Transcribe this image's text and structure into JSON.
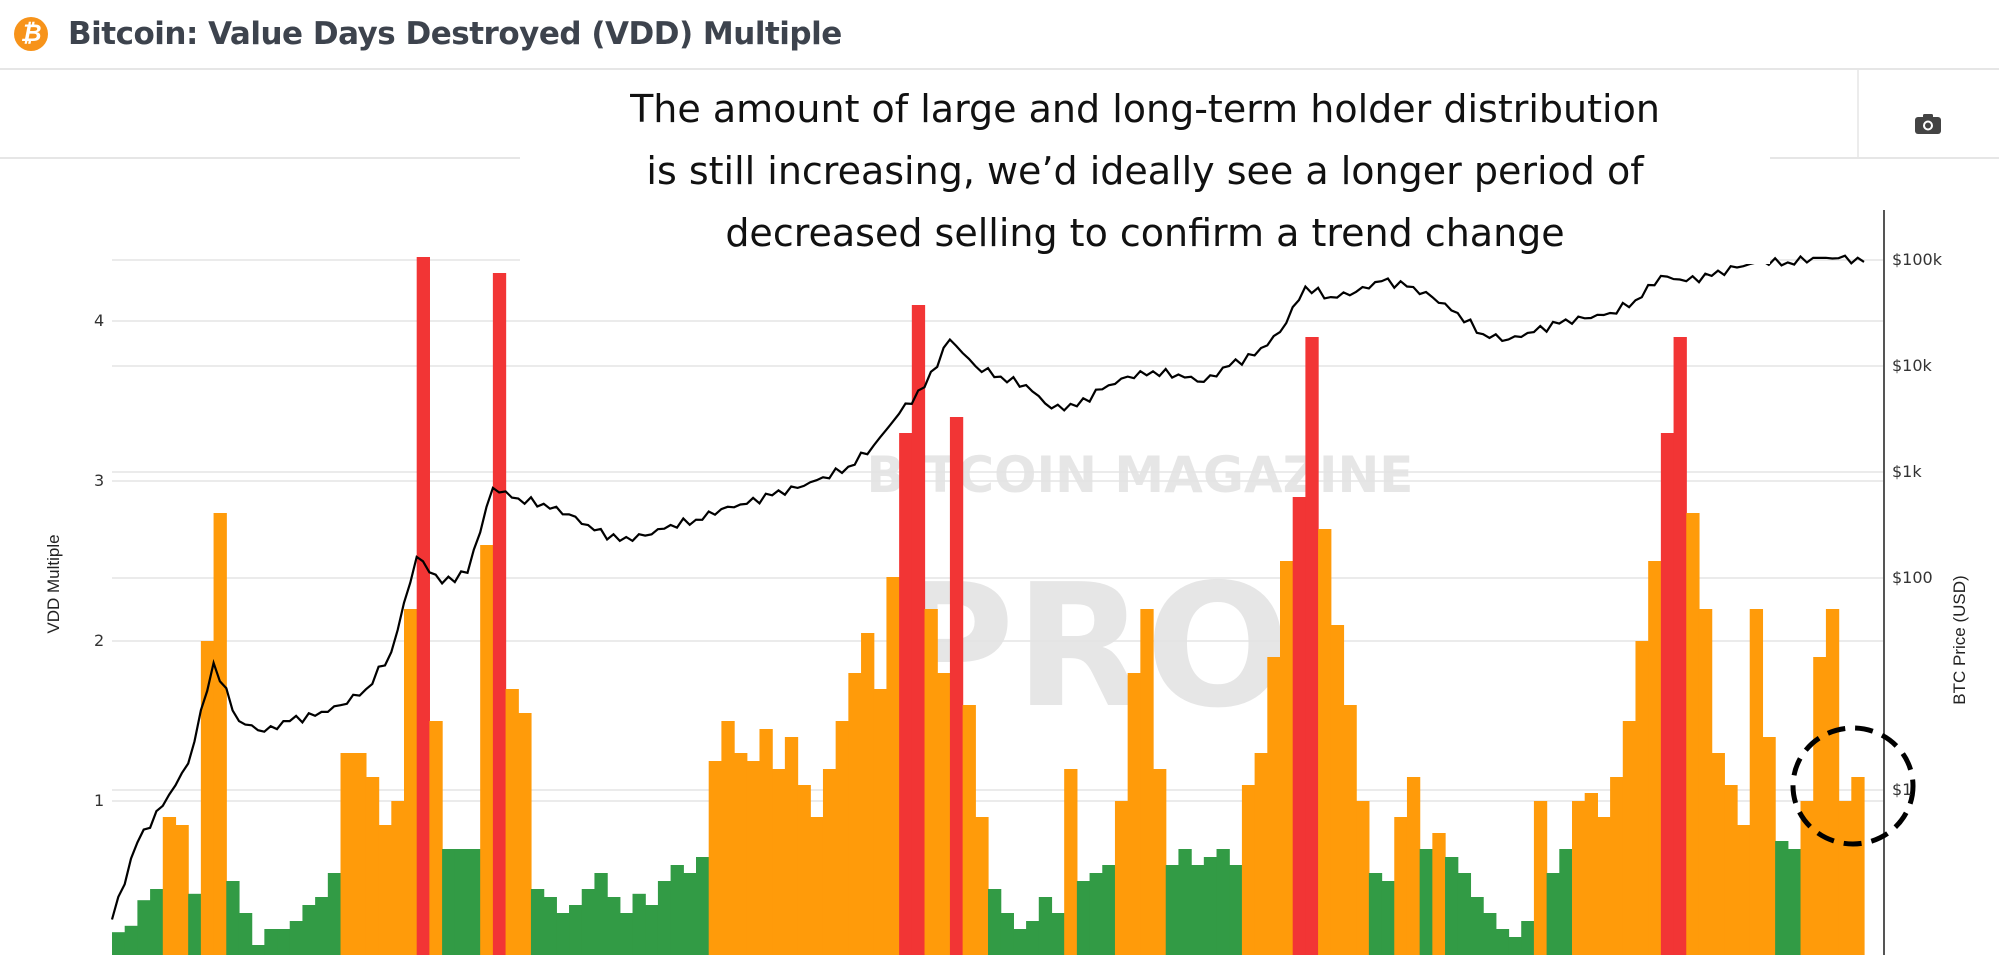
{
  "header": {
    "title": "Bitcoin: Value Days Destroyed (VDD) Multiple",
    "icon": "bitcoin-logo-icon",
    "camera_icon": "camera-icon"
  },
  "annotation": {
    "lines": [
      "The amount of large and long-term holder distribution",
      "is still increasing, we’d ideally see a longer period of",
      "decreased selling to confirm a trend change"
    ]
  },
  "watermark": {
    "line1": "BITCOIN MAGAZINE",
    "line2": "PRO"
  },
  "chart_data": {
    "type": "bar+line",
    "ylabel": "VDD Multiple",
    "y2label": "BTC Price (USD)",
    "ylim": [
      0,
      4.5
    ],
    "yticks": [
      {
        "v": 1,
        "label": "1"
      },
      {
        "v": 2,
        "label": "2"
      },
      {
        "v": 3,
        "label": "3"
      },
      {
        "v": 4,
        "label": "4"
      }
    ],
    "y2scale": "log",
    "y2lim": [
      0.025,
      250000
    ],
    "y2ticks": [
      {
        "v": 1,
        "label": "$1"
      },
      {
        "v": 100,
        "label": "$100"
      },
      {
        "v": 1000,
        "label": "$1k"
      },
      {
        "v": 10000,
        "label": "$10k"
      },
      {
        "v": 100000,
        "label": "$100k"
      }
    ],
    "grid": true,
    "colors": {
      "low": "#329b45",
      "mid": "#ff9b0a",
      "high": "#f23535",
      "price": "#000000"
    },
    "color_thresholds": {
      "mid": 0.78,
      "high": 2.9
    },
    "vdd_multiple": [
      0.18,
      0.22,
      0.38,
      0.45,
      0.9,
      0.85,
      0.42,
      2.0,
      2.8,
      0.5,
      0.3,
      0.1,
      0.2,
      0.2,
      0.25,
      0.35,
      0.4,
      0.55,
      1.3,
      1.3,
      1.15,
      0.85,
      1.0,
      2.2,
      4.4,
      1.5,
      0.7,
      0.7,
      0.7,
      2.6,
      4.3,
      1.7,
      1.55,
      0.45,
      0.4,
      0.3,
      0.35,
      0.45,
      0.55,
      0.4,
      0.3,
      0.42,
      0.35,
      0.5,
      0.6,
      0.55,
      0.65,
      1.25,
      1.5,
      1.3,
      1.25,
      1.45,
      1.2,
      1.4,
      1.1,
      0.9,
      1.2,
      1.5,
      1.8,
      2.05,
      1.7,
      2.4,
      3.3,
      4.1,
      2.2,
      1.8,
      3.4,
      1.6,
      0.9,
      0.45,
      0.3,
      0.2,
      0.25,
      0.4,
      0.3,
      1.2,
      0.5,
      0.55,
      0.6,
      1.0,
      1.8,
      2.2,
      1.2,
      0.6,
      0.7,
      0.6,
      0.65,
      0.7,
      0.6,
      1.1,
      1.3,
      1.9,
      2.5,
      2.9,
      3.9,
      2.7,
      2.1,
      1.6,
      1.0,
      0.55,
      0.5,
      0.9,
      1.15,
      0.7,
      0.8,
      0.65,
      0.55,
      0.4,
      0.3,
      0.2,
      0.15,
      0.25,
      1.0,
      0.55,
      0.7,
      1.0,
      1.05,
      0.9,
      1.15,
      1.5,
      2.0,
      2.5,
      3.3,
      3.9,
      2.8,
      2.2,
      1.3,
      1.1,
      0.85,
      2.2,
      1.4,
      0.75,
      0.7,
      1.0,
      1.9,
      2.2,
      1.0,
      1.15
    ],
    "btc_price": [
      0.06,
      0.32,
      0.71,
      1.78,
      15.8,
      4.47,
      3.55,
      4.47,
      5.01,
      6.31,
      8.91,
      20,
      158,
      89,
      112,
      708,
      562,
      501,
      398,
      282,
      224,
      251,
      316,
      355,
      447,
      501,
      603,
      708,
      891,
      1122,
      1778,
      3548,
      6310,
      17783,
      10000,
      7943,
      6607,
      3981,
      4169,
      6026,
      7943,
      8913,
      8318,
      7079,
      10000,
      12589,
      20893,
      56234,
      44668,
      50119,
      63096,
      56234,
      44668,
      31623,
      19953,
      17783,
      20893,
      25119,
      28184,
      31623,
      41687,
      70795,
      63096,
      70795,
      85000,
      98000,
      95000,
      105000,
      104000,
      96000
    ]
  }
}
